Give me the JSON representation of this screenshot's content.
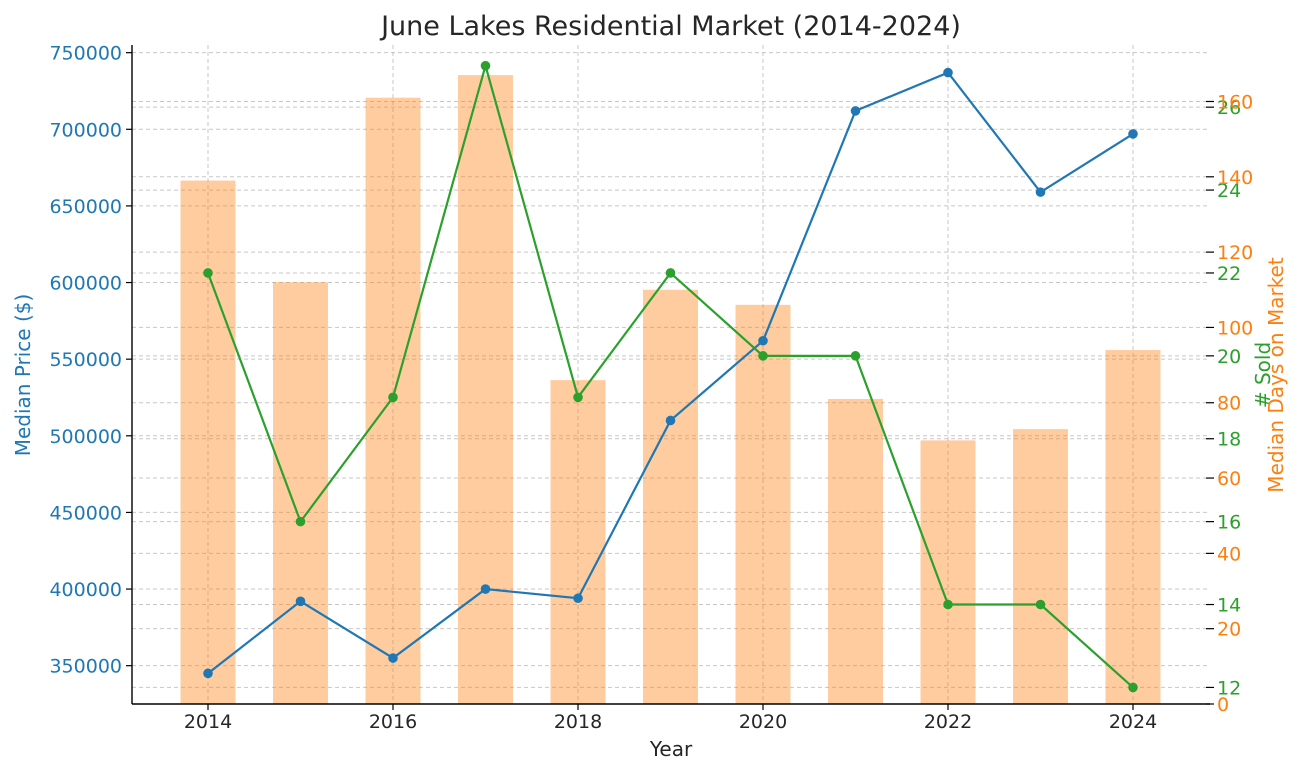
{
  "chart_data": {
    "type": "bar+line",
    "title": "June Lakes Residential Market (2014-2024)",
    "xlabel": "Year",
    "x": [
      2014,
      2015,
      2016,
      2017,
      2018,
      2019,
      2020,
      2021,
      2022,
      2023,
      2024
    ],
    "x_ticks": [
      "2014",
      "2016",
      "2018",
      "2020",
      "2022",
      "2024"
    ],
    "grid": true,
    "series": [
      {
        "name": "Median Days on Market",
        "kind": "bar",
        "axis": "right-outer",
        "color": "#ff7f0e",
        "values": [
          139,
          112,
          161,
          167,
          86,
          110,
          106,
          81,
          70,
          73,
          94
        ]
      },
      {
        "name": "Median Price ($)",
        "kind": "line",
        "axis": "left",
        "color": "#1f77b4",
        "values": [
          345000,
          392000,
          355000,
          400000,
          394000,
          510000,
          562000,
          712000,
          737000,
          659000,
          697000
        ]
      },
      {
        "name": "# Sold",
        "kind": "line",
        "axis": "right-inner",
        "color": "#2ca02c",
        "values": [
          22,
          16,
          19,
          27,
          19,
          22,
          20,
          20,
          14,
          14,
          12
        ]
      }
    ],
    "axes": {
      "left": {
        "label": "Median Price ($)",
        "color": "#1f77b4",
        "ylim": [
          325000,
          755000
        ],
        "ticks": [
          "350000",
          "400000",
          "450000",
          "500000",
          "550000",
          "600000",
          "650000",
          "700000",
          "750000"
        ]
      },
      "right_inner": {
        "label": "# Sold",
        "color": "#2ca02c",
        "ylim": [
          11.6,
          27.5
        ],
        "ticks": [
          "12",
          "14",
          "16",
          "18",
          "20",
          "22",
          "24",
          "26"
        ]
      },
      "right_outer": {
        "label": "Median Days on Market",
        "color": "#ff7f0e",
        "ylim": [
          0,
          175
        ],
        "ticks": [
          "0",
          "20",
          "40",
          "60",
          "80",
          "100",
          "120",
          "140",
          "160"
        ]
      }
    }
  }
}
